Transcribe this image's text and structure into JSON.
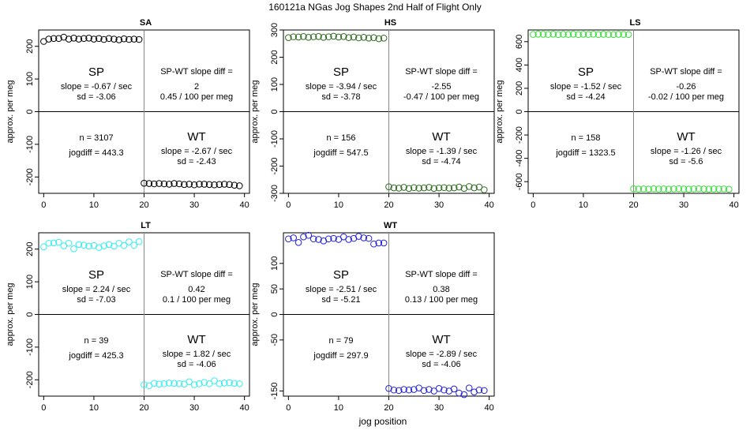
{
  "figure": {
    "title": "160121a   NGas Jog Shapes 2nd Half of Flight Only",
    "xlabel": "jog position"
  },
  "labels": {
    "ylabel": "approx. per meg",
    "sp": "SP",
    "wt": "WT",
    "diff_title": "SP-WT slope diff ="
  },
  "chart_data": [
    {
      "type": "scatter",
      "title": "SA",
      "color": "#000000",
      "xlim": [
        -1,
        41
      ],
      "ylim": [
        -250,
        250
      ],
      "xticks": [
        0,
        10,
        20,
        30,
        40
      ],
      "yticks": [
        -200,
        -100,
        0,
        100,
        200
      ],
      "sp_y": [
        215,
        222,
        224,
        224,
        228,
        222,
        225,
        222,
        224,
        225,
        222,
        224,
        221,
        224,
        222,
        220,
        223,
        221,
        222,
        221
      ],
      "wt_y": [
        -219,
        -220,
        -221,
        -220,
        -221,
        -222,
        -220,
        -221,
        -223,
        -222,
        -224,
        -222,
        -222,
        -223,
        -224,
        -223,
        -222,
        -223,
        -225,
        -227
      ],
      "stats": {
        "sp_slope": "slope = -0.67 / sec",
        "sp_sd": "sd = -3.06",
        "diff_value": "2",
        "diff_per": "0.45 / 100 per meg",
        "n": "n = 3107",
        "jogdiff": "jogdiff = 443.3",
        "wt_slope": "slope = -2.67 / sec",
        "wt_sd": "sd = -2.43"
      }
    },
    {
      "type": "scatter",
      "title": "HS",
      "color": "#2e6b1f",
      "xlim": [
        -1,
        41
      ],
      "ylim": [
        -300,
        300
      ],
      "xticks": [
        0,
        10,
        20,
        30,
        40
      ],
      "yticks": [
        -300,
        -200,
        -100,
        0,
        100,
        200,
        300
      ],
      "sp_y": [
        272,
        275,
        274,
        276,
        273,
        275,
        276,
        273,
        275,
        277,
        274,
        276,
        272,
        274,
        271,
        273,
        270,
        272,
        268,
        270
      ],
      "wt_y": [
        -276,
        -280,
        -281,
        -278,
        -282,
        -279,
        -281,
        -280,
        -278,
        -282,
        -280,
        -279,
        -281,
        -280,
        -277,
        -282,
        -275,
        -280,
        -277,
        -287
      ],
      "stats": {
        "sp_slope": "slope = -3.94 / sec",
        "sp_sd": "sd = -3.78",
        "diff_value": "-2.55",
        "diff_per": "-0.47 / 100 per meg",
        "n": "n = 156",
        "jogdiff": "jogdiff = 547.5",
        "wt_slope": "slope = -1.39 / sec",
        "wt_sd": "sd = -4.74"
      }
    },
    {
      "type": "scatter",
      "title": "LS",
      "color": "#33dd33",
      "xlim": [
        -1,
        41
      ],
      "ylim": [
        -700,
        700
      ],
      "xticks": [
        0,
        10,
        20,
        30,
        40
      ],
      "yticks": [
        -600,
        -400,
        -200,
        0,
        200,
        400,
        600
      ],
      "sp_y": [
        662,
        664,
        663,
        662,
        664,
        661,
        663,
        662,
        664,
        661,
        663,
        662,
        664,
        661,
        663,
        662,
        661,
        663,
        662,
        661
      ],
      "wt_y": [
        -661,
        -663,
        -662,
        -664,
        -661,
        -663,
        -662,
        -664,
        -662,
        -661,
        -663,
        -664,
        -662,
        -661,
        -663,
        -664,
        -662,
        -663,
        -662,
        -665
      ],
      "stats": {
        "sp_slope": "slope = -1.52 / sec",
        "sp_sd": "sd = -4.24",
        "diff_value": "-0.26",
        "diff_per": "-0.02 / 100 per meg",
        "n": "n = 158",
        "jogdiff": "jogdiff = 1323.5",
        "wt_slope": "slope = -1.26 / sec",
        "wt_sd": "sd = -5.6"
      }
    },
    {
      "type": "scatter",
      "title": "LT",
      "color": "#33eeee",
      "xlim": [
        -1,
        41
      ],
      "ylim": [
        -250,
        250
      ],
      "xticks": [
        0,
        10,
        20,
        30,
        40
      ],
      "yticks": [
        -200,
        -100,
        0,
        100,
        200
      ],
      "sp_y": [
        207,
        218,
        219,
        221,
        210,
        218,
        201,
        214,
        212,
        209,
        211,
        205,
        210,
        214,
        209,
        218,
        211,
        222,
        212,
        223
      ],
      "wt_y": [
        -215,
        -218,
        -211,
        -213,
        -212,
        -210,
        -211,
        -212,
        -213,
        -206,
        -215,
        -212,
        -208,
        -212,
        -203,
        -212,
        -210,
        -209,
        -211,
        -212
      ],
      "stats": {
        "sp_slope": "slope = 2.24 / sec",
        "sp_sd": "sd = -7.03",
        "diff_value": "0.42",
        "diff_per": "0.1 / 100 per meg",
        "n": "n = 39",
        "jogdiff": "jogdiff = 425.3",
        "wt_slope": "slope = 1.82 / sec",
        "wt_sd": "sd = -4.06"
      }
    },
    {
      "type": "scatter",
      "title": "WT",
      "color": "#2222dd",
      "xlim": [
        -1,
        41
      ],
      "ylim": [
        -160,
        160
      ],
      "xticks": [
        0,
        10,
        20,
        30,
        40
      ],
      "yticks": [
        -150,
        -50,
        0,
        50,
        100
      ],
      "sp_y": [
        148,
        150,
        141,
        152,
        155,
        148,
        147,
        144,
        148,
        149,
        147,
        152,
        147,
        149,
        153,
        150,
        149,
        138,
        140,
        140
      ],
      "wt_y": [
        -145,
        -148,
        -149,
        -147,
        -148,
        -147,
        -144,
        -149,
        -147,
        -150,
        -145,
        -148,
        -150,
        -146,
        -154,
        -157,
        -144,
        -152,
        -148,
        -149
      ],
      "stats": {
        "sp_slope": "slope = -2.51 / sec",
        "sp_sd": "sd = -5.21",
        "diff_value": "0.38",
        "diff_per": "0.13 / 100 per meg",
        "n": "n = 79",
        "jogdiff": "jogdiff = 297.9",
        "wt_slope": "slope = -2.89 / sec",
        "wt_sd": "sd = -4.06"
      }
    }
  ]
}
